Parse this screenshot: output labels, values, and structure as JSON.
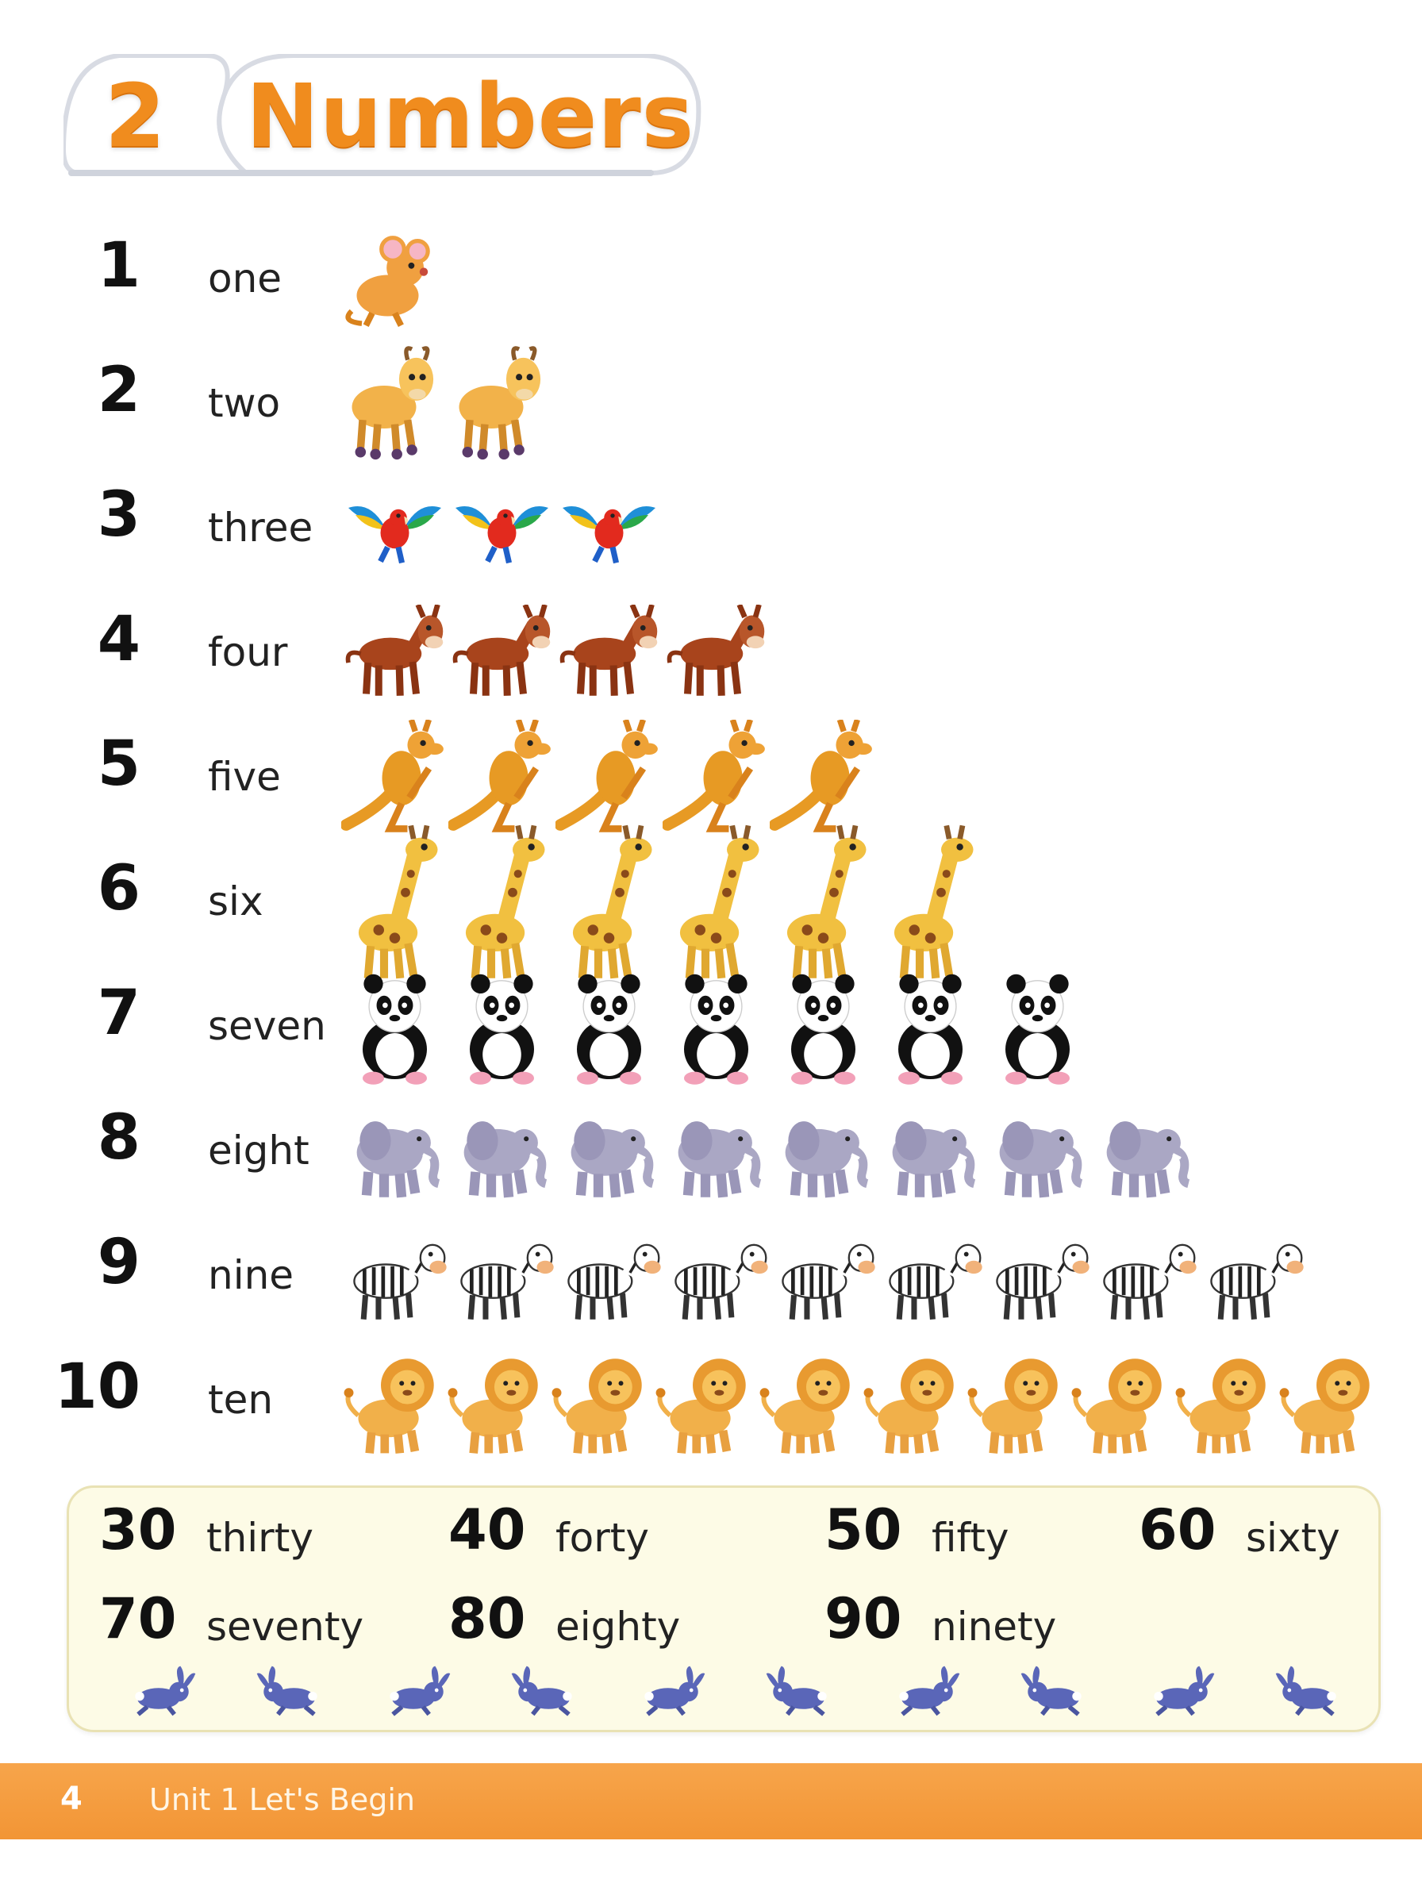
{
  "title": {
    "number": "2",
    "text": "Numbers"
  },
  "rows": [
    {
      "numeral": "1",
      "word": "one",
      "animal": "mouse",
      "count": 1
    },
    {
      "numeral": "2",
      "word": "two",
      "animal": "goat",
      "count": 2
    },
    {
      "numeral": "3",
      "word": "three",
      "animal": "parrot",
      "count": 3
    },
    {
      "numeral": "4",
      "word": "four",
      "animal": "donkey",
      "count": 4
    },
    {
      "numeral": "5",
      "word": "five",
      "animal": "kangaroo",
      "count": 5
    },
    {
      "numeral": "6",
      "word": "six",
      "animal": "giraffe",
      "count": 6
    },
    {
      "numeral": "7",
      "word": "seven",
      "animal": "panda",
      "count": 7
    },
    {
      "numeral": "8",
      "word": "eight",
      "animal": "elephant",
      "count": 8
    },
    {
      "numeral": "9",
      "word": "nine",
      "animal": "zebra",
      "count": 9
    },
    {
      "numeral": "10",
      "word": "ten",
      "animal": "lion",
      "count": 10
    }
  ],
  "tens": [
    {
      "number": "30",
      "word": "thirty"
    },
    {
      "number": "40",
      "word": "forty"
    },
    {
      "number": "50",
      "word": "fifty"
    },
    {
      "number": "60",
      "word": "sixty"
    },
    {
      "number": "70",
      "word": "seventy"
    },
    {
      "number": "80",
      "word": "eighty"
    },
    {
      "number": "90",
      "word": "ninety"
    }
  ],
  "rabbits": {
    "animal": "rabbit",
    "count": 10
  },
  "footer": {
    "page": "4",
    "unit": "Unit 1   Let's Begin"
  },
  "colors": {
    "title": "#f08c1e",
    "footer": "#f29535",
    "tens_box": "#fdfbe6"
  }
}
